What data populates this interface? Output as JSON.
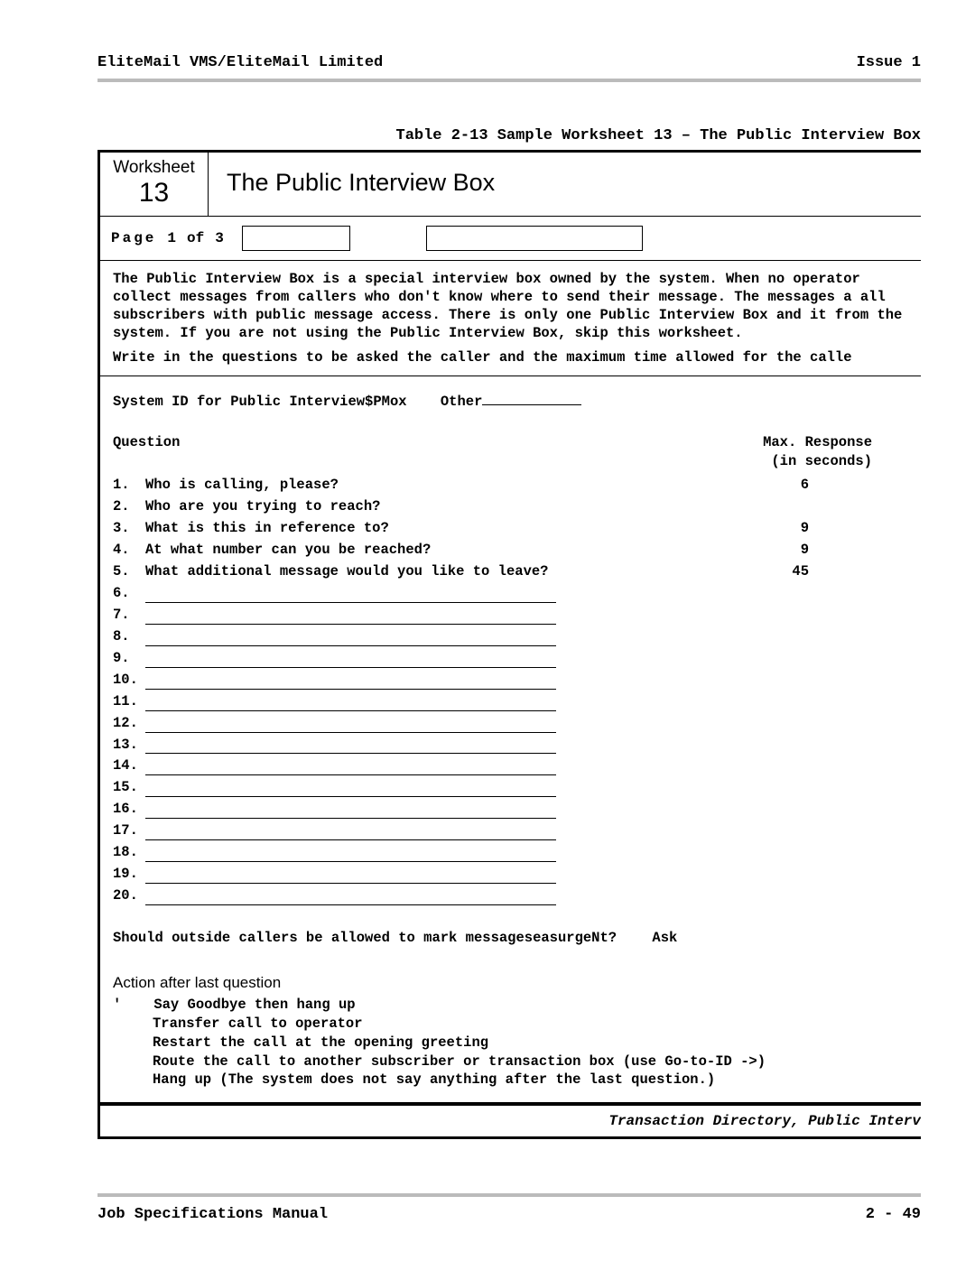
{
  "header": {
    "left": "EliteMail VMS/EliteMail Limited",
    "right": "Issue 1"
  },
  "tableCaption": "Table 2-13  Sample Worksheet 13 – The Public Interview Box",
  "worksheet": {
    "label": "Worksheet",
    "number": "13",
    "title": "The Public Interview Box",
    "pageRow": {
      "prefix": "Page",
      "cur": "1",
      "of": "of",
      "tot": "3"
    },
    "desc": "The Public Interview Box is a special interview box owned by the system. When no operator collect messages from callers who don't know where to send their message. The messages a all subscribers with public message access. There is only one Public Interview Box and it from the system. If you are not using the Public Interview Box, skip this worksheet.",
    "desc2": "Write in the questions to be asked the caller and the maximum time allowed for the calle",
    "sysIdLabel": "System ID for Public Interview$PMox",
    "otherLabel": "Other",
    "qHeader": {
      "left": "Question",
      "right1": "Max. Response",
      "right2": "(in seconds)"
    },
    "questions": [
      {
        "n": "1.",
        "t": "Who is calling, please?",
        "r": "6"
      },
      {
        "n": "2.",
        "t": "Who are you trying to reach?",
        "r": ""
      },
      {
        "n": "3.",
        "t": "What is this in reference to?",
        "r": "9"
      },
      {
        "n": "4.",
        "t": "At what number can you be reached?",
        "r": "9"
      },
      {
        "n": "5.",
        "t": "What additional message would you like to leave?",
        "r": "45"
      }
    ],
    "blankStart": 6,
    "blankEnd": 20,
    "urgent": {
      "q": "Should outside callers be allowed to mark messageseasurgeNt?",
      "ask": "Ask"
    },
    "actionTitle": "Action after last question",
    "actions": [
      "Say Goodbye then hang up",
      "Transfer call to operator",
      "Restart the call at the opening greeting",
      "Route the call to another subscriber or transaction box (use Go-to-ID ->)",
      "Hang up (The system does not say anything after the last question.)"
    ],
    "footerItalic": "Transaction Directory, Public Interv"
  },
  "footer": {
    "left": "Job Specifications Manual",
    "right": "2 - 49"
  }
}
